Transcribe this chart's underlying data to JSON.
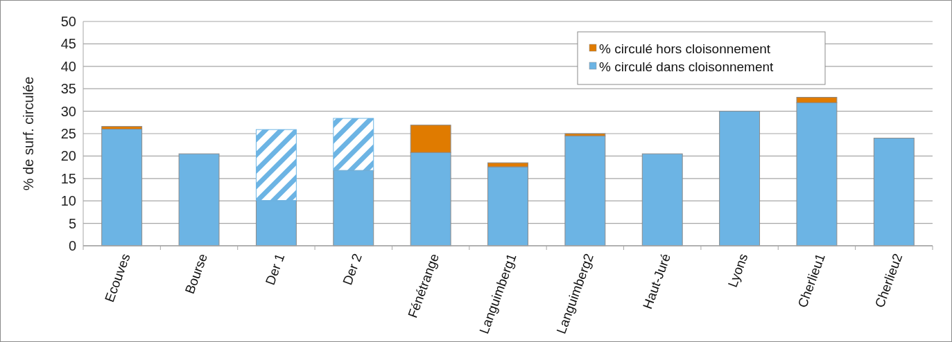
{
  "chart_data": {
    "type": "bar",
    "ylabel": "% de surf. circulée",
    "categories": [
      "Ecouves",
      "Bourse",
      "Der 1",
      "Der 2",
      "Fénétrange",
      "Languimberg1",
      "Languimberg2",
      "Haut-Juré",
      "Lyons",
      "Cherlieu1",
      "Cherlieu2"
    ],
    "series": [
      {
        "name": "% circulé dans cloisonnement",
        "color": "#6cb4e4",
        "values": [
          26,
          20.5,
          10.1,
          16.8,
          20.8,
          17.6,
          24.5,
          20.5,
          30,
          31.9,
          24
        ]
      },
      {
        "color": "#6cb4e4",
        "values": [
          null,
          null,
          15.8,
          11.6,
          null,
          null,
          null,
          null,
          null,
          null,
          null
        ]
      },
      {
        "name": "% circulé hors cloisonnement",
        "color": "#e07b00",
        "values": [
          0.6,
          null,
          null,
          null,
          6.1,
          0.9,
          0.5,
          null,
          null,
          1.2,
          null
        ]
      }
    ],
    "stacked": true,
    "ylim": [
      0,
      50
    ],
    "yticks": [
      0,
      5,
      10,
      15,
      20,
      25,
      30,
      35,
      40,
      45,
      50
    ],
    "grid": "y",
    "legend": "top right"
  }
}
